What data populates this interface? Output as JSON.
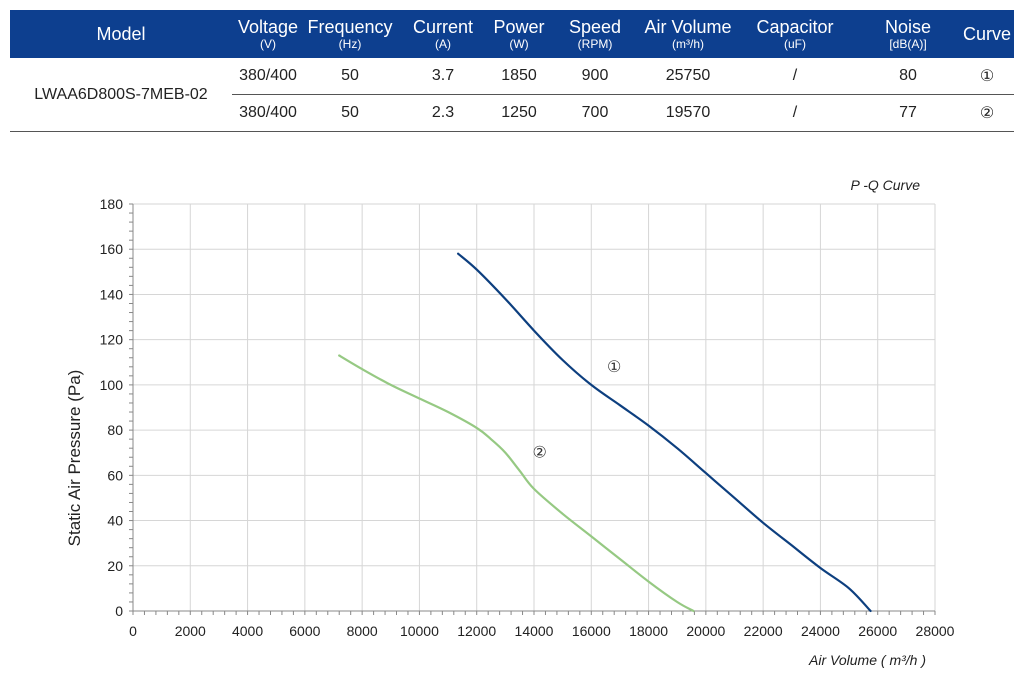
{
  "table": {
    "headers": [
      {
        "label": "Model",
        "unit": ""
      },
      {
        "label": "Voltage",
        "unit": "(V)"
      },
      {
        "label": "Frequency",
        "unit": "(Hz)"
      },
      {
        "label": "Current",
        "unit": "(A)"
      },
      {
        "label": "Power",
        "unit": "(W)"
      },
      {
        "label": "Speed",
        "unit": "(RPM)"
      },
      {
        "label": "Air Volume",
        "unit": "(m³/h)"
      },
      {
        "label": "Capacitor",
        "unit": "(uF)"
      },
      {
        "label": "Noise",
        "unit": "[dB(A)]"
      },
      {
        "label": "Curve",
        "unit": ""
      }
    ],
    "model": "LWAA6D800S-7MEB-02",
    "rows": [
      {
        "voltage": "380/400",
        "frequency": "50",
        "current": "3.7",
        "power": "1850",
        "speed": "900",
        "air_volume": "25750",
        "capacitor": "/",
        "noise": "80",
        "curve": "①"
      },
      {
        "voltage": "380/400",
        "frequency": "50",
        "current": "2.3",
        "power": "1250",
        "speed": "700",
        "air_volume": "19570",
        "capacitor": "/",
        "noise": "77",
        "curve": "②"
      }
    ],
    "header_color": "#0d3f8f"
  },
  "chart_data": {
    "type": "line",
    "title": "P -Q Curve",
    "xlabel": "Air Volume ( m³/h )",
    "ylabel": "Static Air Pressure  (Pa)",
    "xlim": [
      0,
      28000
    ],
    "ylim": [
      0,
      180
    ],
    "xticks": [
      0,
      2000,
      4000,
      6000,
      8000,
      10000,
      12000,
      14000,
      16000,
      18000,
      20000,
      22000,
      24000,
      26000,
      28000
    ],
    "yticks": [
      0,
      20,
      40,
      60,
      80,
      100,
      120,
      140,
      160,
      180
    ],
    "grid": true,
    "series": [
      {
        "name": "①",
        "color": "#0d3f7f",
        "x": [
          11350,
          12000,
          13000,
          14000,
          15000,
          16000,
          17000,
          18000,
          19000,
          20000,
          21000,
          22000,
          23000,
          24000,
          25000,
          25750
        ],
        "y": [
          158,
          151,
          138,
          124,
          111,
          100,
          91,
          82,
          72,
          61,
          50,
          39,
          29,
          19,
          10,
          0
        ]
      },
      {
        "name": "②",
        "color": "#96c983",
        "x": [
          7200,
          8000,
          9000,
          10000,
          11000,
          12000,
          12500,
          13000,
          13500,
          14000,
          15000,
          16000,
          17000,
          18000,
          19000,
          19570
        ],
        "y": [
          113,
          107,
          100,
          94,
          88,
          81,
          76,
          70,
          62,
          54,
          43,
          33,
          23,
          13,
          4,
          0
        ]
      }
    ]
  }
}
